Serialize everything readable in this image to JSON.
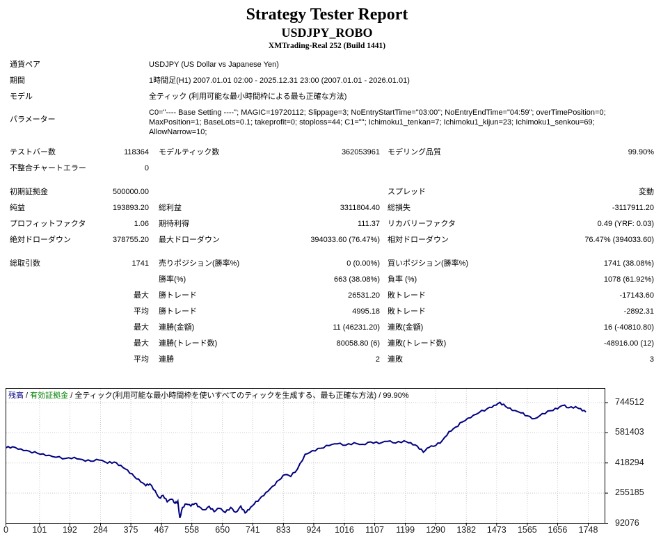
{
  "header": {
    "title": "Strategy Tester Report",
    "expert": "USDJPY_ROBO",
    "broker": "XMTrading-Real 252 (Build 1441)"
  },
  "info_rows": [
    {
      "label": "通貨ペア",
      "value": "USDJPY (US Dollar vs Japanese Yen)",
      "multiline": false
    },
    {
      "label": "期間",
      "value": "1時間足(H1) 2007.01.01 02:00 - 2025.12.31 23:00 (2007.01.01 - 2026.01.01)",
      "multiline": false
    },
    {
      "label": "モデル",
      "value": "全ティック (利用可能な最小時間枠による最も正確な方法)",
      "multiline": false
    },
    {
      "label": "パラメーター",
      "value": "C0=\"---- Base Setting ----\"; MAGIC=19720112; Slippage=3; NoEntryStartTime=\"03:00\"; NoEntryEndTime=\"04:59\"; overTimePosition=0; MaxPosition=1; BaseLots=0.1; takeprofit=0; stoploss=44; C1=\"\"; Ichimoku1_tenkan=7; Ichimoku1_kijun=23; Ichimoku1_senkou=69; AllowNarrow=10;",
      "multiline": true
    }
  ],
  "stats_rows": [
    {
      "gap": false,
      "l1": "テストバー数",
      "v1": "118364",
      "l2": "モデルティック数",
      "v2": "362053961",
      "l3": "モデリング品質",
      "v3": "99.90%"
    },
    {
      "gap": false,
      "l1": "不整合チャートエラー",
      "v1": "0",
      "l2": "",
      "v2": "",
      "l3": "",
      "v3": ""
    },
    {
      "gap": true,
      "l1": "初期証拠金",
      "v1": "500000.00",
      "l2": "",
      "v2": "",
      "l3": "スプレッド",
      "v3": "変動"
    },
    {
      "gap": false,
      "l1": "純益",
      "v1": "193893.20",
      "l2": "総利益",
      "v2": "3311804.40",
      "l3": "総損失",
      "v3": "-3117911.20"
    },
    {
      "gap": false,
      "l1": "プロフィットファクタ",
      "v1": "1.06",
      "l2": "期待利得",
      "v2": "111.37",
      "l3": "リカバリーファクタ",
      "v3": "0.49 (YRF: 0.03)"
    },
    {
      "gap": false,
      "l1": "絶対ドローダウン",
      "v1": "378755.20",
      "l2": "最大ドローダウン",
      "v2": "394033.60 (76.47%)",
      "l3": "相対ドローダウン",
      "v3": "76.47% (394033.60)"
    },
    {
      "gap": true,
      "l1": "総取引数",
      "v1": "1741",
      "l2": "売りポジション(勝率%)",
      "v2": "0 (0.00%)",
      "l3": "買いポジション(勝率%)",
      "v3": "1741 (38.08%)"
    },
    {
      "gap": false,
      "l1": "",
      "v1": "",
      "l2": "勝率(%)",
      "v2": "663 (38.08%)",
      "l3": "負率 (%)",
      "v3": "1078 (61.92%)"
    },
    {
      "gap": false,
      "l1": "",
      "v1": "最大",
      "l2": "勝トレード",
      "v2": "26531.20",
      "l3": "敗トレード",
      "v3": "-17143.60"
    },
    {
      "gap": false,
      "l1": "",
      "v1": "平均",
      "l2": "勝トレード",
      "v2": "4995.18",
      "l3": "敗トレード",
      "v3": "-2892.31"
    },
    {
      "gap": false,
      "l1": "",
      "v1": "最大",
      "l2": "連勝(金額)",
      "v2": "11 (46231.20)",
      "l3": "連敗(金額)",
      "v3": "16 (-40810.80)"
    },
    {
      "gap": false,
      "l1": "",
      "v1": "最大",
      "l2": "連勝(トレード数)",
      "v2": "80058.80 (6)",
      "l3": "連敗(トレード数)",
      "v3": "-48916.00 (12)"
    },
    {
      "gap": false,
      "l1": "",
      "v1": "平均",
      "l2": "連勝",
      "v2": "2",
      "l3": "連敗",
      "v3": "3"
    }
  ],
  "chart_data": {
    "type": "line",
    "legend": {
      "balance_label": "残高",
      "equity_label": "有効証拠金",
      "model_label": "全ティック(利用可能な最小時間枠を使いすべてのティックを生成する、最も正確な方法)",
      "quality_label": "99.90%",
      "separator": " / "
    },
    "colors": {
      "balance": "#000080",
      "equity": "#008000",
      "grid": "#c8c8c8",
      "border": "#000000",
      "background": "#ffffff"
    },
    "xlabel": "",
    "ylabel": "",
    "x_range": [
      0,
      1748
    ],
    "x_ticks": [
      0,
      101,
      192,
      284,
      375,
      467,
      558,
      650,
      741,
      833,
      924,
      1016,
      1107,
      1199,
      1290,
      1382,
      1473,
      1565,
      1656,
      1748
    ],
    "y_ticks": [
      744512,
      581403,
      418294,
      255185,
      92076
    ],
    "grid": "dotted",
    "legend_position": "top-left",
    "series": [
      {
        "name": "残高",
        "color": "#000080",
        "points": [
          [
            0,
            500000
          ],
          [
            20,
            506000
          ],
          [
            45,
            494000
          ],
          [
            70,
            482000
          ],
          [
            95,
            470000
          ],
          [
            120,
            458000
          ],
          [
            150,
            449000
          ],
          [
            180,
            443000
          ],
          [
            205,
            449000
          ],
          [
            230,
            436000
          ],
          [
            255,
            428000
          ],
          [
            280,
            434000
          ],
          [
            305,
            417000
          ],
          [
            325,
            423000
          ],
          [
            345,
            405000
          ],
          [
            365,
            380000
          ],
          [
            385,
            345000
          ],
          [
            405,
            315000
          ],
          [
            420,
            295000
          ],
          [
            432,
            305000
          ],
          [
            448,
            268000
          ],
          [
            460,
            230000
          ],
          [
            472,
            243000
          ],
          [
            484,
            208000
          ],
          [
            497,
            222000
          ],
          [
            508,
            200000
          ],
          [
            516,
            212000
          ],
          [
            522,
            121245
          ],
          [
            530,
            178000
          ],
          [
            542,
            196000
          ],
          [
            555,
            185000
          ],
          [
            568,
            200000
          ],
          [
            580,
            182000
          ],
          [
            595,
            165000
          ],
          [
            610,
            184000
          ],
          [
            625,
            155000
          ],
          [
            640,
            173000
          ],
          [
            658,
            150000
          ],
          [
            675,
            178000
          ],
          [
            690,
            152000
          ],
          [
            705,
            185000
          ],
          [
            718,
            148000
          ],
          [
            730,
            165000
          ],
          [
            745,
            195000
          ],
          [
            762,
            225000
          ],
          [
            780,
            258000
          ],
          [
            800,
            292000
          ],
          [
            820,
            326000
          ],
          [
            838,
            355000
          ],
          [
            855,
            345000
          ],
          [
            875,
            385000
          ],
          [
            898,
            465000
          ],
          [
            920,
            485000
          ],
          [
            945,
            498000
          ],
          [
            970,
            512000
          ],
          [
            995,
            522000
          ],
          [
            1020,
            514000
          ],
          [
            1045,
            528000
          ],
          [
            1070,
            519000
          ],
          [
            1095,
            532000
          ],
          [
            1120,
            523000
          ],
          [
            1145,
            535000
          ],
          [
            1170,
            526000
          ],
          [
            1195,
            538000
          ],
          [
            1215,
            528000
          ],
          [
            1235,
            509000
          ],
          [
            1253,
            476000
          ],
          [
            1270,
            502000
          ],
          [
            1290,
            512000
          ],
          [
            1310,
            540000
          ],
          [
            1330,
            588000
          ],
          [
            1350,
            612000
          ],
          [
            1370,
            640000
          ],
          [
            1395,
            663000
          ],
          [
            1420,
            690000
          ],
          [
            1445,
            712000
          ],
          [
            1465,
            730000
          ],
          [
            1483,
            746000
          ],
          [
            1500,
            724000
          ],
          [
            1520,
            702000
          ],
          [
            1546,
            689000
          ],
          [
            1565,
            673000
          ],
          [
            1587,
            658000
          ],
          [
            1610,
            685000
          ],
          [
            1635,
            701000
          ],
          [
            1656,
            711000
          ],
          [
            1671,
            729000
          ],
          [
            1690,
            717000
          ],
          [
            1710,
            723000
          ],
          [
            1725,
            712000
          ],
          [
            1741,
            693893
          ]
        ]
      }
    ]
  }
}
